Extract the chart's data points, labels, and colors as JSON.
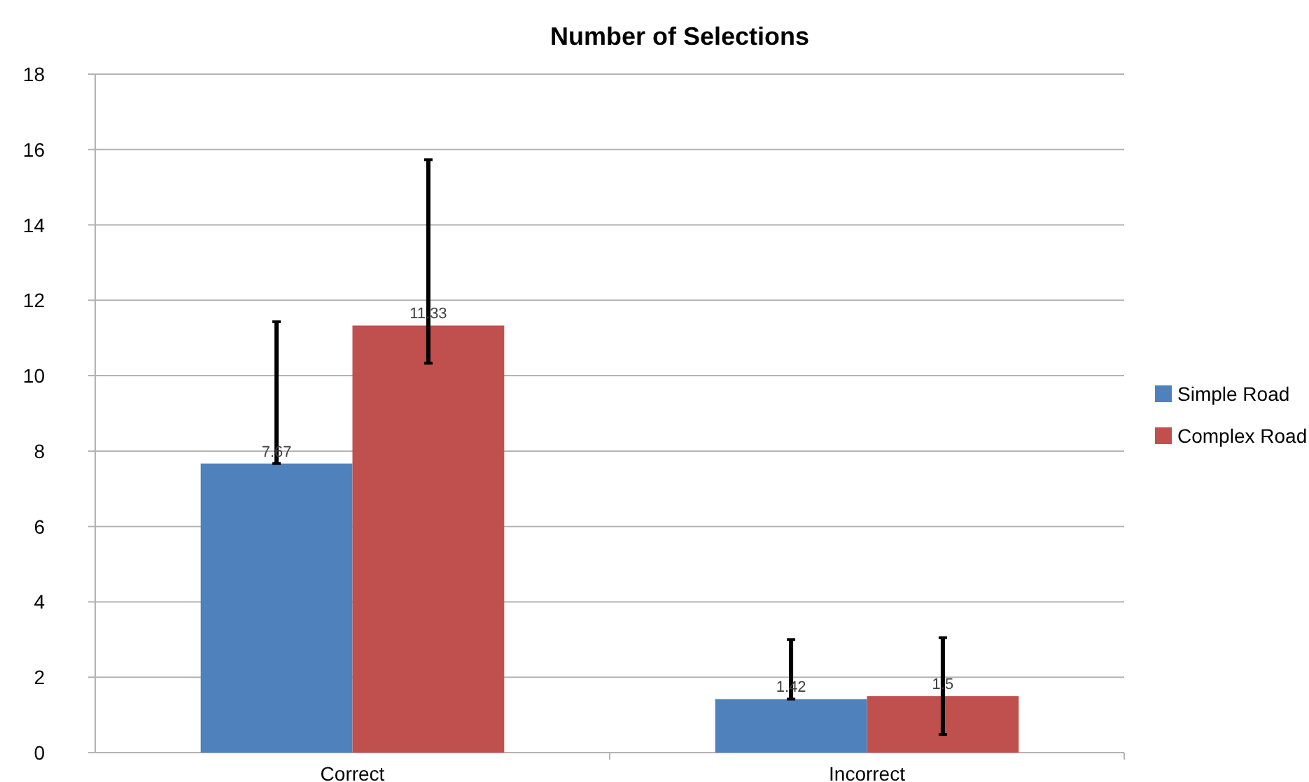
{
  "chart_data": {
    "type": "bar",
    "title": "Number of Selections",
    "categories": [
      "Correct",
      "Incorrect"
    ],
    "series": [
      {
        "name": "Simple Road",
        "color": "#4f81bd",
        "values": [
          7.67,
          1.42
        ],
        "errors": [
          [
            7.67,
            11.43
          ],
          [
            1.42,
            3.0
          ]
        ]
      },
      {
        "name": "Complex Road",
        "color": "#c0504d",
        "values": [
          11.33,
          1.5
        ],
        "errors": [
          [
            10.33,
            15.73
          ],
          [
            0.48,
            3.05
          ]
        ]
      }
    ],
    "ylim": [
      0,
      18
    ],
    "yticks": [
      0,
      2,
      4,
      6,
      8,
      10,
      12,
      14,
      16,
      18
    ],
    "grid": "y",
    "legend": "right",
    "data_labels": true
  }
}
